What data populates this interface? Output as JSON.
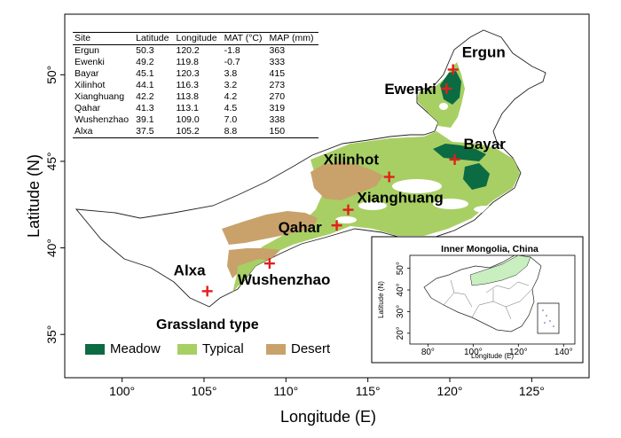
{
  "axes": {
    "xlabel": "Longitude (E)",
    "ylabel": "Latitude (N)",
    "xticks": [
      {
        "value": 100,
        "label": "100°"
      },
      {
        "value": 105,
        "label": "105°"
      },
      {
        "value": 110,
        "label": "110°"
      },
      {
        "value": 115,
        "label": "115°"
      },
      {
        "value": 120,
        "label": "120°"
      },
      {
        "value": 125,
        "label": "125°"
      }
    ],
    "yticks": [
      {
        "value": 35,
        "label": "35°"
      },
      {
        "value": 40,
        "label": "40°"
      },
      {
        "value": 45,
        "label": "45°"
      },
      {
        "value": 50,
        "label": "50°"
      }
    ],
    "xlim": [
      96.5,
      128.5
    ],
    "ylim": [
      32.5,
      53.5
    ]
  },
  "site_table": {
    "headers": [
      "Site",
      "Latitude",
      "Longitude",
      "MAT (°C)",
      "MAP (mm)"
    ],
    "rows": [
      [
        "Ergun",
        "50.3",
        "120.2",
        "-1.8",
        "363"
      ],
      [
        "Ewenki",
        "49.2",
        "119.8",
        "-0.7",
        "333"
      ],
      [
        "Bayar",
        "45.1",
        "120.3",
        "3.8",
        "415"
      ],
      [
        "Xilinhot",
        "44.1",
        "116.3",
        "3.2",
        "273"
      ],
      [
        "Xianghuang",
        "42.2",
        "113.8",
        "4.2",
        "270"
      ],
      [
        "Qahar",
        "41.3",
        "113.1",
        "4.5",
        "319"
      ],
      [
        "Wushenzhao",
        "39.1",
        "109.0",
        "7.0",
        "338"
      ],
      [
        "Alxa",
        "37.5",
        "105.2",
        "8.8",
        "150"
      ]
    ]
  },
  "sites": [
    {
      "name": "Ergun",
      "lat": 50.3,
      "lon": 120.2
    },
    {
      "name": "Ewenki",
      "lat": 49.2,
      "lon": 119.8
    },
    {
      "name": "Bayar",
      "lat": 45.1,
      "lon": 120.3
    },
    {
      "name": "Xilinhot",
      "lat": 44.1,
      "lon": 116.3
    },
    {
      "name": "Xianghuang",
      "lat": 42.2,
      "lon": 113.8
    },
    {
      "name": "Qahar",
      "lat": 41.3,
      "lon": 113.1
    },
    {
      "name": "Wushenzhao",
      "lat": 39.1,
      "lon": 109.0
    },
    {
      "name": "Alxa",
      "lat": 37.5,
      "lon": 105.2
    }
  ],
  "legend": {
    "title": "Grassland type",
    "items": [
      {
        "label": "Meadow",
        "color": "#0b6b43"
      },
      {
        "label": "Typical",
        "color": "#a8cf64"
      },
      {
        "label": "Desert",
        "color": "#c8a26a"
      }
    ]
  },
  "inset": {
    "title": "Inner Mongolia, China",
    "xlabel": "Longitude (E)",
    "ylabel": "Latitude (N)",
    "xticks": [
      {
        "value": 80,
        "label": "80°"
      },
      {
        "value": 100,
        "label": "100°"
      },
      {
        "value": 120,
        "label": "120°"
      },
      {
        "value": 140,
        "label": "140°"
      }
    ],
    "yticks": [
      {
        "value": 20,
        "label": "20°"
      },
      {
        "value": 30,
        "label": "30°"
      },
      {
        "value": 40,
        "label": "40°"
      },
      {
        "value": 50,
        "label": "50°"
      }
    ],
    "xlim": [
      72,
      145
    ],
    "ylim": [
      15,
      56
    ],
    "highlight_color": "#c9efc0"
  },
  "colors": {
    "marker": "#e0201b",
    "region_fill": "#ffffff",
    "region_stroke": "#222222"
  }
}
